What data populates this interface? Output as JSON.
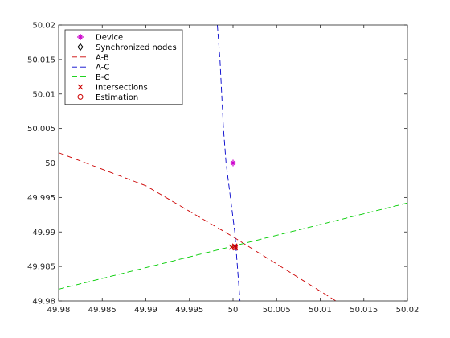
{
  "chart_data": {
    "type": "line",
    "title": "",
    "xlabel": "",
    "ylabel": "",
    "xlim": [
      49.98,
      50.02
    ],
    "ylim": [
      49.98,
      50.02
    ],
    "xticks": [
      "49.98",
      "49.985",
      "49.99",
      "49.995",
      "50",
      "50.005",
      "50.01",
      "50.015",
      "50.02"
    ],
    "yticks": [
      "49.98",
      "49.985",
      "49.99",
      "49.995",
      "50",
      "50.005",
      "50.01",
      "50.015",
      "50.02"
    ],
    "grid": false,
    "legend_placement": "top-left",
    "series": [
      {
        "name": "Device",
        "kind": "marker",
        "marker": "star",
        "color": "#cc00cc",
        "points": [
          [
            50.0,
            50.0
          ]
        ]
      },
      {
        "name": "Synchronized nodes",
        "kind": "marker",
        "marker": "diamond",
        "color": "#000000",
        "points": []
      },
      {
        "name": "A-B",
        "kind": "line",
        "dash": "long",
        "color": "#cc0000",
        "points": [
          [
            49.98,
            50.0015
          ],
          [
            49.99,
            49.9967
          ],
          [
            50.0,
            49.9893
          ],
          [
            50.0118,
            49.98
          ]
        ]
      },
      {
        "name": "A-C",
        "kind": "line",
        "dash": "long",
        "color": "#0000cc",
        "points": [
          [
            49.9982,
            50.02
          ],
          [
            49.9985,
            50.015
          ],
          [
            49.9987,
            50.01
          ],
          [
            49.9989,
            50.005
          ],
          [
            49.9992,
            50.0
          ],
          [
            49.9997,
            49.995
          ],
          [
            50.0002,
            49.99
          ],
          [
            50.0005,
            49.985
          ],
          [
            50.0008,
            49.98
          ]
        ]
      },
      {
        "name": "B-C",
        "kind": "line",
        "dash": "long",
        "color": "#00cc00",
        "points": [
          [
            49.98,
            49.9817
          ],
          [
            50.02,
            49.9942
          ]
        ]
      },
      {
        "name": "Intersections",
        "kind": "marker",
        "marker": "x",
        "color": "#cc0000",
        "points": [
          [
            49.99985,
            49.9878
          ],
          [
            50.0002,
            49.98795
          ],
          [
            50.00025,
            49.9877
          ]
        ]
      },
      {
        "name": "Estimation",
        "kind": "marker",
        "marker": "circle",
        "color": "#cc0000",
        "points": [
          [
            50.0002,
            49.98778
          ]
        ]
      }
    ]
  }
}
